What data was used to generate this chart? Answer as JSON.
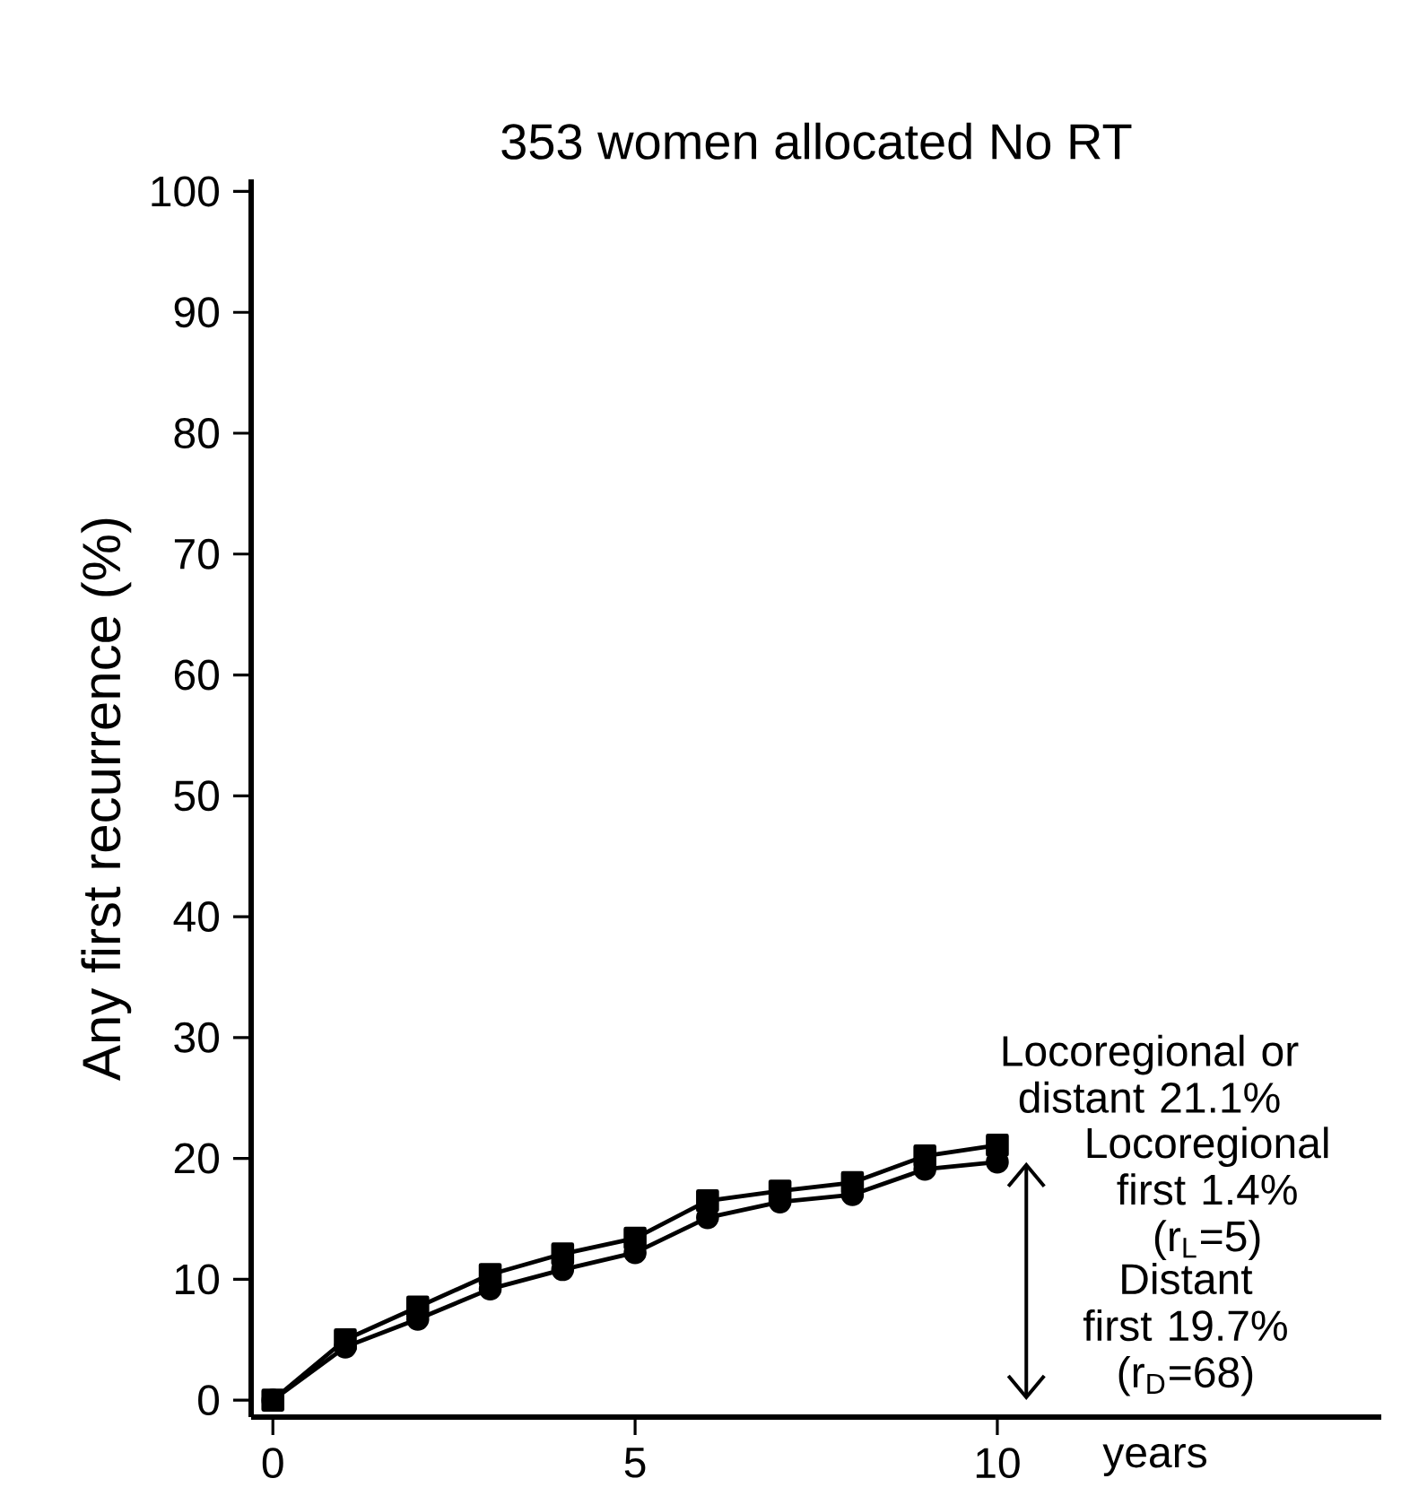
{
  "chart_data": {
    "type": "line",
    "title": "353 women allocated No RT",
    "xlabel": "years",
    "ylabel": "Any first recurrence (%)",
    "x": [
      0,
      1,
      2,
      3,
      4,
      5,
      6,
      7,
      8,
      9,
      10
    ],
    "series": [
      {
        "color": "#000000",
        "marker": "square",
        "values": [
          0,
          5.0,
          7.7,
          10.4,
          12.1,
          13.4,
          16.5,
          17.3,
          18.0,
          20.2,
          21.1
        ]
      },
      {
        "color": "#000000",
        "marker": "circle",
        "values": [
          0,
          4.4,
          6.7,
          9.2,
          10.8,
          12.2,
          15.1,
          16.4,
          17.0,
          19.1,
          19.7
        ]
      }
    ],
    "xlim": [
      -0.3,
      15.3
    ],
    "xticks": [
      0,
      5,
      10
    ],
    "ylim": [
      -1.4,
      101
    ],
    "yticks": [
      0,
      10,
      20,
      30,
      40,
      50,
      60,
      70,
      80,
      90,
      100
    ],
    "line_style": "solid",
    "grid": false,
    "annotations": [
      {
        "text": "Locoregional or distant 21.1%",
        "x": 10,
        "y": 21.1
      },
      {
        "text": "Locoregional first  1.4% (r$_{L}$=5)",
        "x": 10,
        "y": 20.4
      },
      "Distant first 19.7% (r$_{D}$=68)"
    ]
  }
}
